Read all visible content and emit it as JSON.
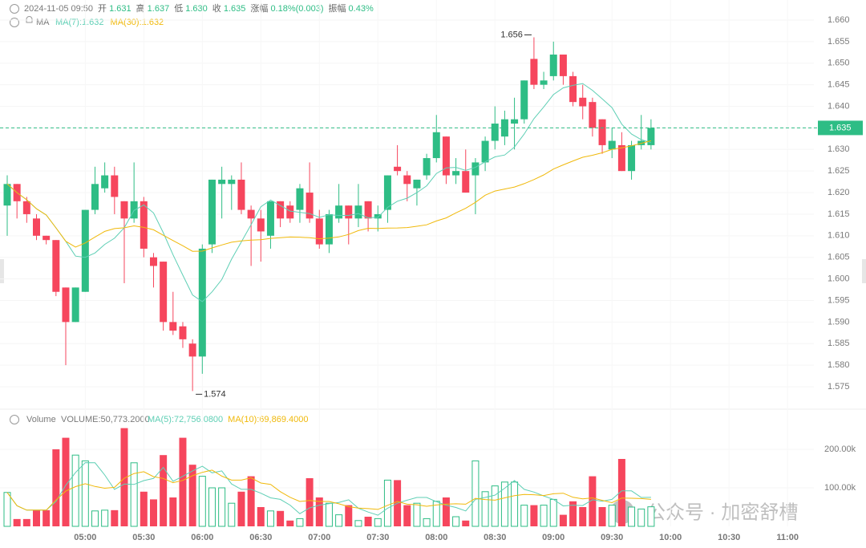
{
  "header": {
    "time": "2024-11-05 09:50",
    "items": [
      {
        "label": "开",
        "value": "1.631"
      },
      {
        "label": "高",
        "value": "1.637"
      },
      {
        "label": "低",
        "value": "1.630"
      },
      {
        "label": "收",
        "value": "1.635"
      },
      {
        "label": "涨幅",
        "value": "0.18%(0.003)"
      },
      {
        "label": "振幅",
        "value": "0.43%"
      }
    ],
    "ma_title": "MA",
    "volume_title": "Volume",
    "volume_value": "VOLUME:50,773.2000",
    "watermark": "公众号 · 加密舒槽"
  },
  "chart_data": {
    "type": "candlestick",
    "categories": [
      null,
      null,
      null,
      null,
      null,
      null,
      null,
      null,
      "05:00",
      null,
      null,
      null,
      null,
      null,
      "05:30",
      null,
      null,
      null,
      null,
      null,
      "06:00",
      null,
      null,
      null,
      null,
      null,
      "06:30",
      null,
      null,
      null,
      null,
      null,
      "07:00",
      null,
      null,
      null,
      null,
      null,
      "07:30",
      null,
      null,
      null,
      null,
      null,
      "08:00",
      null,
      null,
      null,
      null,
      null,
      "08:30",
      null,
      null,
      null,
      null,
      null,
      "09:00",
      null,
      null,
      null,
      null,
      null,
      "09:30",
      null,
      null,
      null,
      null,
      null,
      "10:00",
      null,
      null,
      null,
      null,
      null,
      "10:30",
      null,
      null,
      null,
      null,
      null,
      "11:00"
    ],
    "open": [
      1.617,
      1.622,
      1.618,
      1.614,
      1.61,
      1.609,
      1.598,
      1.59,
      1.597,
      1.616,
      1.621,
      1.624,
      1.618,
      1.614,
      1.618,
      1.605,
      1.604,
      1.59,
      1.589,
      1.585,
      1.582,
      1.608,
      1.622,
      1.622,
      1.623,
      1.616,
      1.614,
      1.61,
      1.618,
      1.617,
      1.616,
      1.62,
      1.614,
      1.608,
      1.614,
      1.617,
      1.614,
      1.618,
      1.614,
      1.616,
      1.626,
      1.624,
      1.621,
      1.624,
      1.628,
      1.633,
      1.624,
      1.625,
      1.624,
      1.627,
      1.632,
      1.633,
      1.636,
      1.637,
      1.651,
      1.645,
      1.647,
      1.652,
      1.647,
      1.642,
      1.641,
      1.637,
      1.63,
      1.631,
      1.625,
      1.631,
      1.631,
      null,
      null,
      null,
      null,
      null,
      null,
      null,
      null,
      null,
      null,
      null,
      null,
      null,
      null
    ],
    "high": [
      1.624,
      1.622,
      1.619,
      1.615,
      1.61,
      1.609,
      1.598,
      1.598,
      1.616,
      1.626,
      1.627,
      1.626,
      1.618,
      1.627,
      1.619,
      1.606,
      1.604,
      1.597,
      1.59,
      1.586,
      1.608,
      1.623,
      1.626,
      1.624,
      1.627,
      1.617,
      1.616,
      1.618,
      1.618,
      1.618,
      1.622,
      1.627,
      1.616,
      1.616,
      1.622,
      1.617,
      1.622,
      1.618,
      1.617,
      1.624,
      1.631,
      1.625,
      1.623,
      1.629,
      1.638,
      1.633,
      1.628,
      1.63,
      1.628,
      1.633,
      1.64,
      1.639,
      1.642,
      1.646,
      1.656,
      1.648,
      1.655,
      1.652,
      1.648,
      1.645,
      1.642,
      1.637,
      1.635,
      1.634,
      1.632,
      1.638,
      1.637,
      null,
      null,
      null,
      null,
      null,
      null,
      null,
      null,
      null,
      null,
      null,
      null,
      null,
      null
    ],
    "low": [
      1.61,
      1.614,
      1.613,
      1.609,
      1.608,
      1.596,
      1.58,
      1.59,
      1.597,
      1.615,
      1.62,
      1.615,
      1.599,
      1.613,
      1.605,
      1.598,
      1.588,
      1.587,
      1.584,
      1.574,
      1.578,
      1.606,
      1.614,
      1.616,
      1.615,
      1.603,
      1.604,
      1.607,
      1.612,
      1.613,
      1.613,
      1.613,
      1.607,
      1.606,
      1.613,
      1.608,
      1.612,
      1.611,
      1.611,
      1.613,
      1.624,
      1.618,
      1.617,
      1.623,
      1.627,
      1.622,
      1.622,
      1.62,
      1.615,
      1.625,
      1.63,
      1.631,
      1.63,
      1.636,
      1.644,
      1.644,
      1.646,
      1.645,
      1.64,
      1.637,
      1.633,
      1.629,
      1.628,
      1.625,
      1.623,
      1.63,
      1.63,
      null,
      null,
      null,
      null,
      null,
      null,
      null,
      null,
      null,
      null,
      null,
      null,
      null,
      null
    ],
    "close": [
      1.622,
      1.618,
      1.615,
      1.61,
      1.609,
      1.597,
      1.59,
      1.598,
      1.616,
      1.622,
      1.624,
      1.619,
      1.614,
      1.618,
      1.607,
      1.603,
      1.59,
      1.588,
      1.586,
      1.582,
      1.607,
      1.623,
      1.623,
      1.623,
      1.616,
      1.614,
      1.611,
      1.618,
      1.614,
      1.614,
      1.621,
      1.614,
      1.608,
      1.615,
      1.617,
      1.614,
      1.617,
      1.614,
      1.615,
      1.624,
      1.625,
      1.622,
      1.623,
      1.628,
      1.634,
      1.624,
      1.625,
      1.62,
      1.627,
      1.632,
      1.636,
      1.637,
      1.637,
      1.646,
      1.645,
      1.646,
      1.652,
      1.647,
      1.641,
      1.64,
      1.635,
      1.631,
      1.632,
      1.625,
      1.631,
      1.632,
      1.635,
      null,
      null,
      null,
      null,
      null,
      null,
      null,
      null,
      null,
      null,
      null,
      null,
      null,
      null
    ],
    "volume": [
      88000,
      19000,
      19000,
      42000,
      42000,
      200000,
      230000,
      185000,
      170000,
      40000,
      42000,
      42000,
      255000,
      165000,
      90000,
      70000,
      185000,
      75000,
      230000,
      160000,
      130000,
      100000,
      100000,
      60000,
      90000,
      130000,
      50000,
      40000,
      40000,
      15000,
      20000,
      125000,
      75000,
      60000,
      30000,
      55000,
      15000,
      25000,
      20000,
      120000,
      120000,
      55000,
      60000,
      20000,
      65000,
      75000,
      25000,
      15000,
      170000,
      90000,
      105000,
      115000,
      115000,
      55000,
      55000,
      55000,
      70000,
      30000,
      65000,
      50000,
      130000,
      50000,
      55000,
      175000,
      50000,
      45000,
      50773.2,
      null,
      null,
      null,
      null,
      null,
      null,
      null,
      null,
      null,
      null,
      null,
      null,
      null,
      null
    ],
    "up_color": "#2ebd85",
    "down_color": "#f6465d",
    "grid": true,
    "ylim": [
      1.571,
      1.664
    ],
    "yticks": [
      {
        "value": 1.575,
        "label": "1.575"
      },
      {
        "value": 1.58,
        "label": "1.580"
      },
      {
        "value": 1.585,
        "label": "1.585"
      },
      {
        "value": 1.59,
        "label": "1.590"
      },
      {
        "value": 1.595,
        "label": "1.595"
      },
      {
        "value": 1.6,
        "label": "1.600"
      },
      {
        "value": 1.605,
        "label": "1.605"
      },
      {
        "value": 1.61,
        "label": "1.610"
      },
      {
        "value": 1.615,
        "label": "1.615"
      },
      {
        "value": 1.62,
        "label": "1.620"
      },
      {
        "value": 1.625,
        "label": "1.625"
      },
      {
        "value": 1.63,
        "label": "1.630"
      },
      {
        "value": 1.635,
        "label": "1.635"
      },
      {
        "value": 1.64,
        "label": "1.640"
      },
      {
        "value": 1.645,
        "label": "1.645"
      },
      {
        "value": 1.65,
        "label": "1.650"
      },
      {
        "value": 1.655,
        "label": "1.655"
      },
      {
        "value": 1.66,
        "label": "1.660"
      }
    ],
    "vol_ylim": [
      0,
      270000
    ],
    "vol_yticks": [
      {
        "value": 100000,
        "label": "100.00k"
      },
      {
        "value": 200000,
        "label": "200.00k"
      }
    ],
    "ma": [
      {
        "label": "MA(7):1.632",
        "period": 7,
        "color": "#5fcfb5"
      },
      {
        "label": "MA(30):1.632",
        "period": 30,
        "color": "#f0b90b"
      }
    ],
    "vol_ma": [
      {
        "label": "MA(5):72,756.0800",
        "period": 5,
        "color": "#5fcfb5"
      },
      {
        "label": "MA(10):69,869.4000",
        "period": 10,
        "color": "#f0b90b"
      }
    ]
  }
}
